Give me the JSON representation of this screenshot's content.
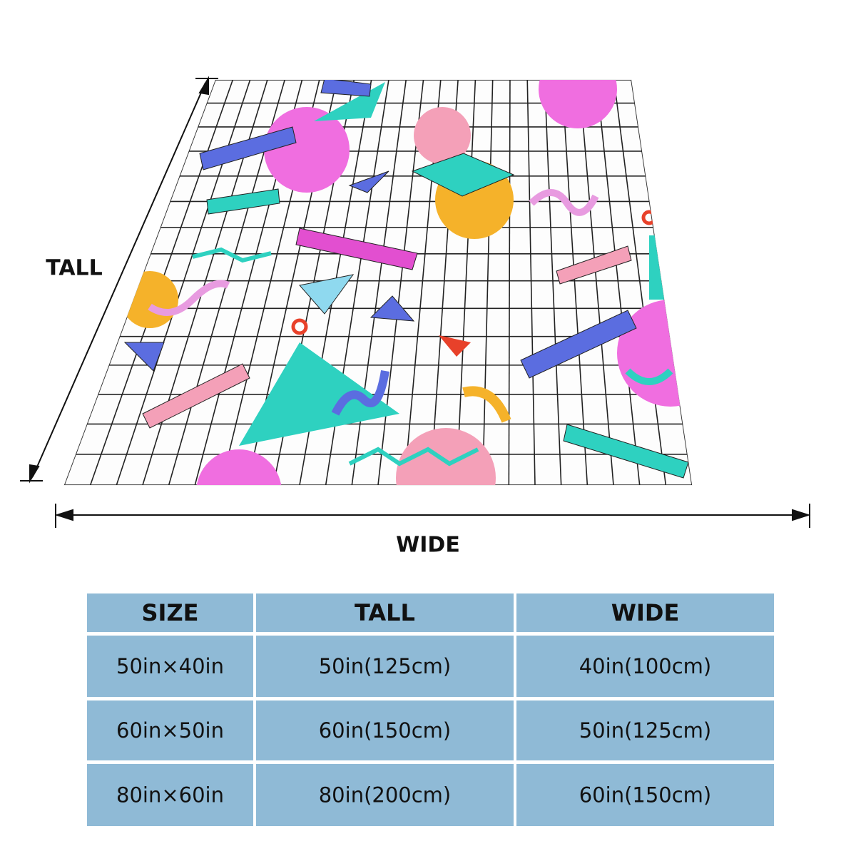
{
  "dimension_labels": {
    "tall": "TALL",
    "wide": "WIDE"
  },
  "table": {
    "header": [
      "SIZE",
      "TALL",
      "WIDE"
    ],
    "rows": [
      [
        "50in×40in",
        "50in(125cm)",
        "40in(100cm)"
      ],
      [
        "60in×50in",
        "60in(150cm)",
        "50in(125cm)"
      ],
      [
        "80in×60in",
        "80in(200cm)",
        "60in(150cm)"
      ]
    ]
  }
}
